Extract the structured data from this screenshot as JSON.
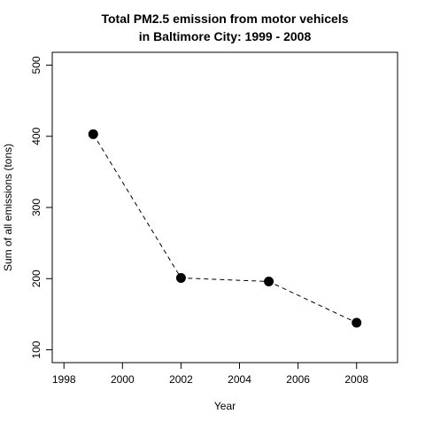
{
  "chart_data": {
    "type": "line",
    "title": "Total PM2.5 emission from motor vehicels",
    "subtitle": "in Baltimore City: 1999 - 2008",
    "xlabel": "Year",
    "ylabel": "Sum of all emissions (tons)",
    "x": [
      1999,
      2002,
      2005,
      2008
    ],
    "series": [
      {
        "values": [
          403,
          201,
          196,
          138
        ]
      }
    ],
    "xlim": [
      1997.6,
      2009.4
    ],
    "ylim": [
      82,
      518
    ],
    "x_ticks": [
      1998,
      2000,
      2002,
      2004,
      2006,
      2008
    ],
    "y_ticks": [
      100,
      200,
      300,
      400,
      500
    ],
    "line_style": "dashed",
    "marker": "filled-circle",
    "grid": false,
    "legend": "none",
    "colors": {
      "line": "#000000",
      "marker": "#000000",
      "axis": "#000000",
      "background": "#ffffff"
    }
  }
}
